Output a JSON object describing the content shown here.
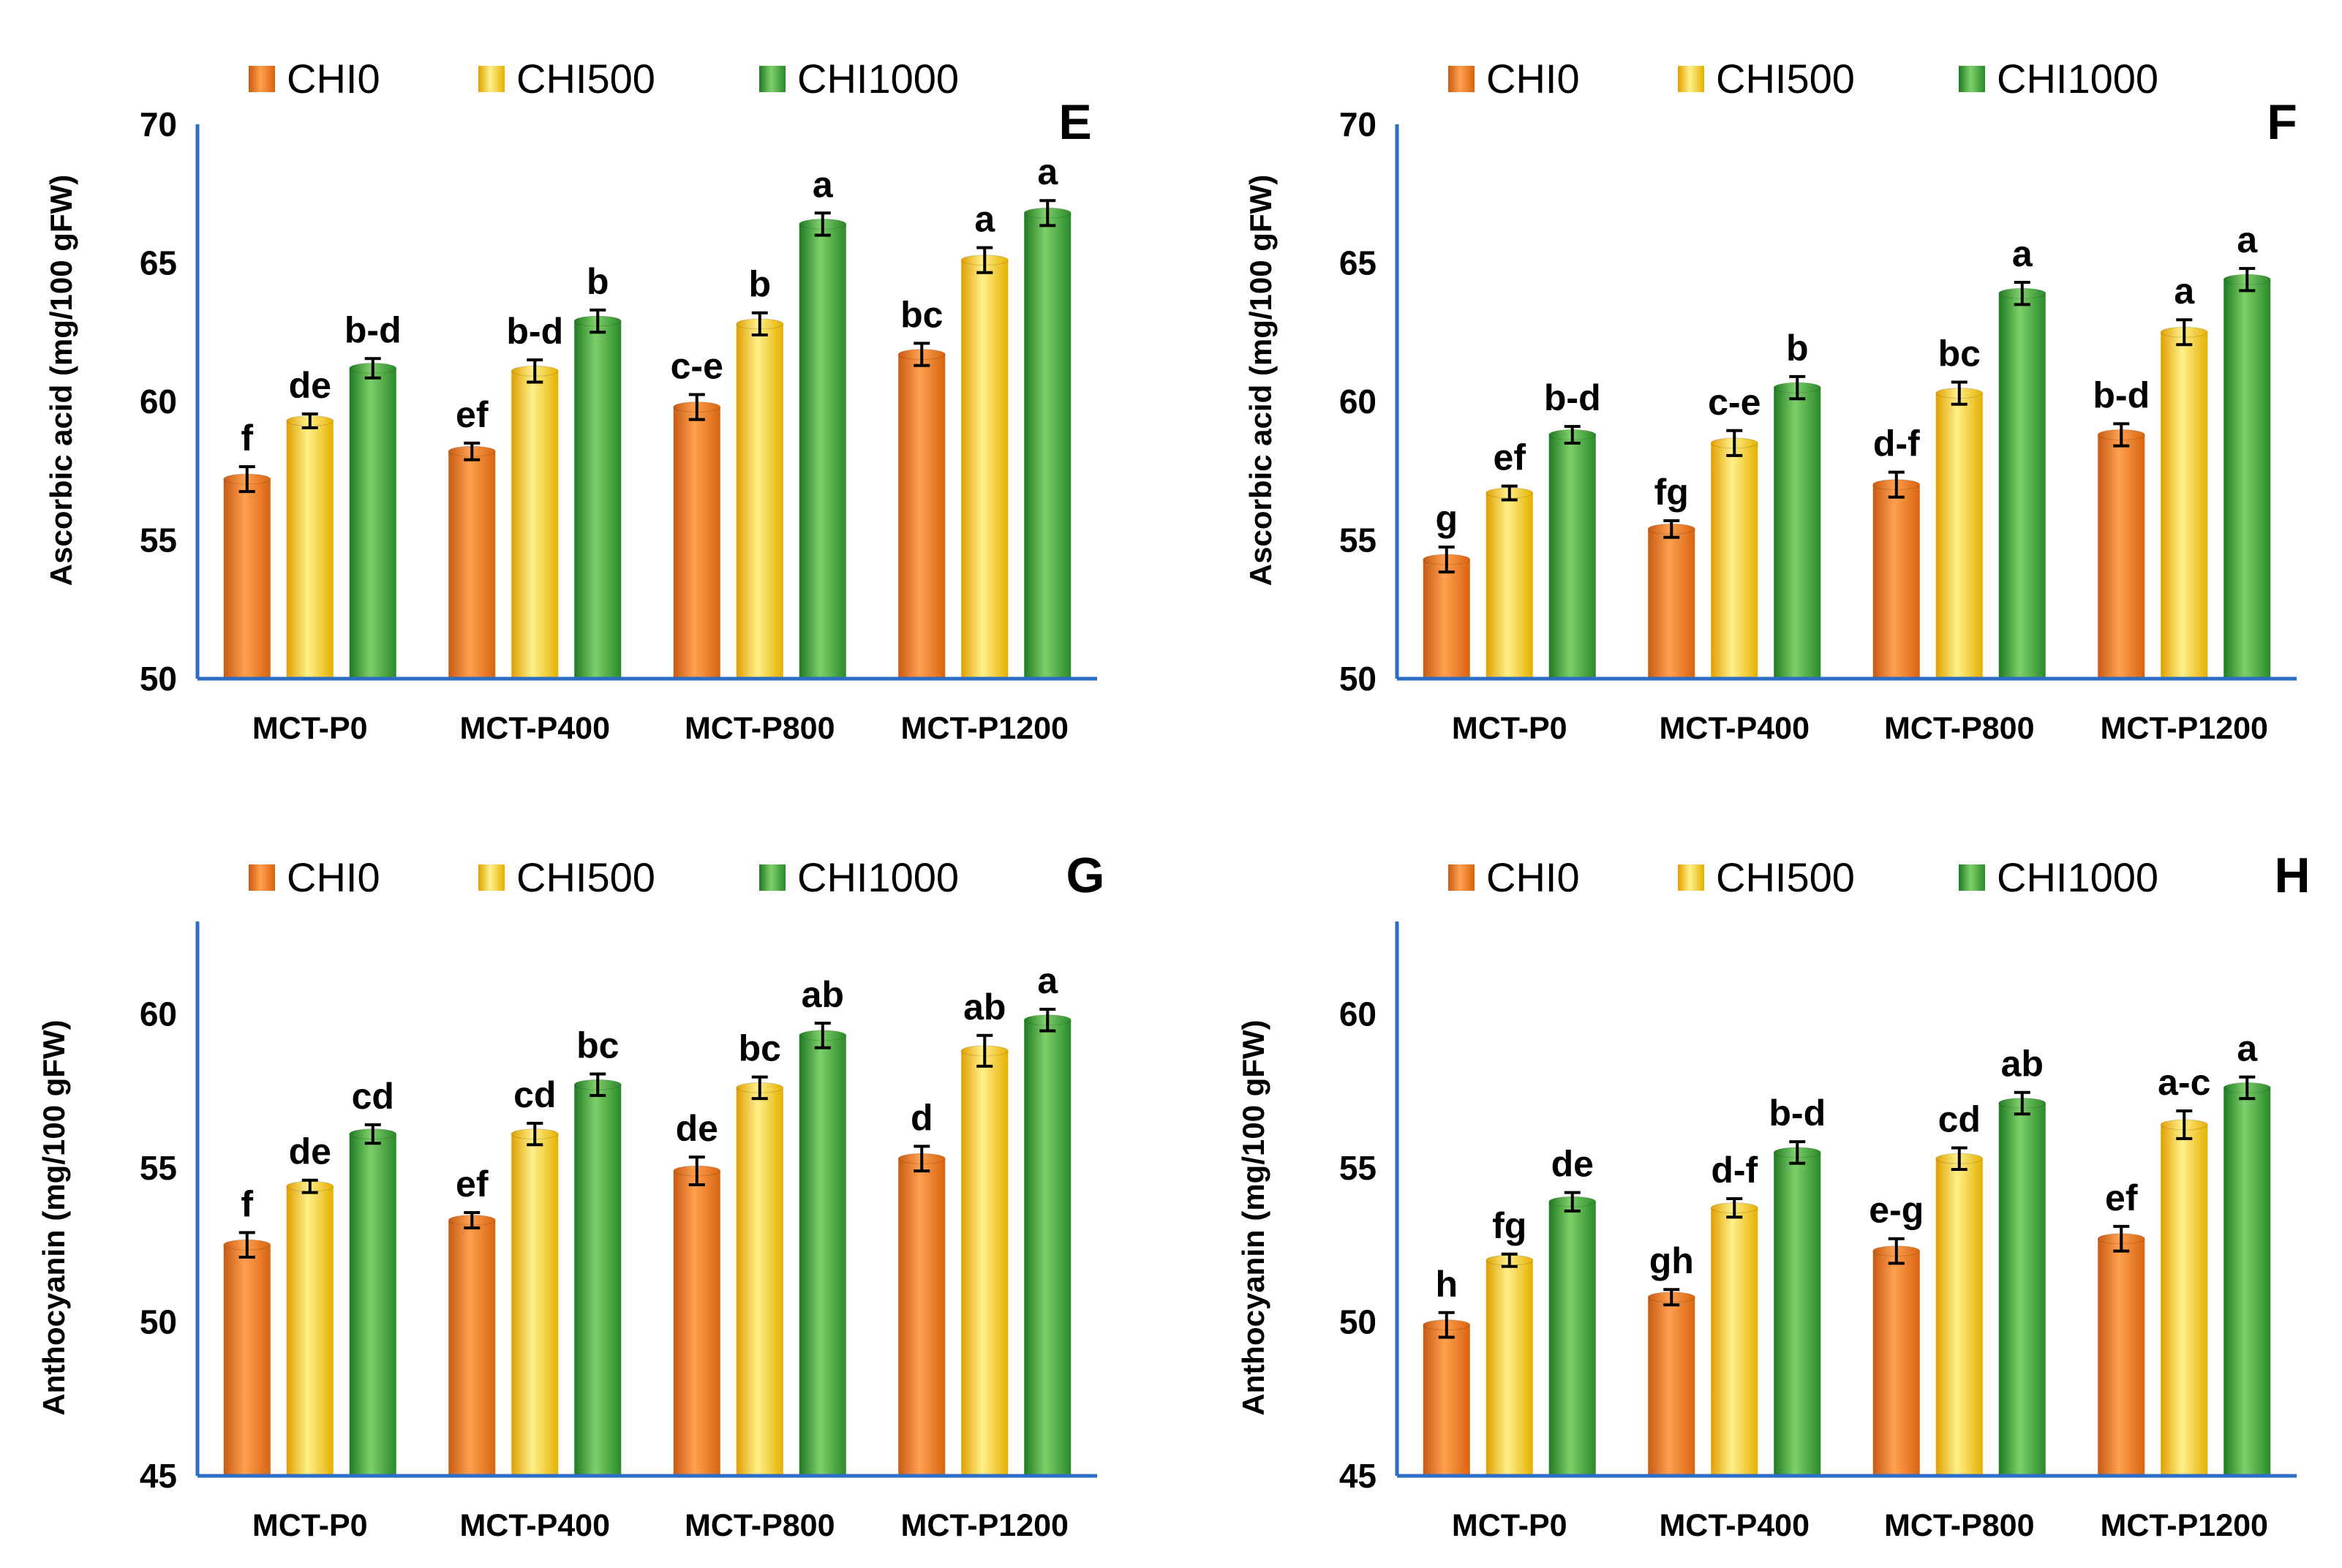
{
  "colors": {
    "CHI0": "#f07a22",
    "CHI500": "#f5c400",
    "CHI1000": "#3aa23a",
    "axis": "#2b6cc4"
  },
  "chart_data": [
    {
      "type": "bar",
      "panel": "E",
      "ylabel": "Ascorbic acid (mg/100 gFW)",
      "ylim": [
        50,
        70
      ],
      "yticks": [
        "50",
        "55",
        "60",
        "65",
        "70"
      ],
      "categories": [
        "MCT-P0",
        "MCT-P400",
        "MCT-P800",
        "MCT-P1200"
      ],
      "series": [
        {
          "name": "CHI0",
          "values": [
            57.2,
            58.2,
            59.8,
            61.7
          ],
          "errors": [
            0.45,
            0.3,
            0.45,
            0.4
          ],
          "labels": [
            "f",
            "ef",
            "c-e",
            "bc"
          ]
        },
        {
          "name": "CHI500",
          "values": [
            59.3,
            61.1,
            62.8,
            65.1
          ],
          "errors": [
            0.25,
            0.4,
            0.4,
            0.45
          ],
          "labels": [
            "de",
            "b-d",
            "b",
            "a"
          ]
        },
        {
          "name": "CHI1000",
          "values": [
            61.2,
            62.9,
            66.4,
            66.8
          ],
          "errors": [
            0.35,
            0.4,
            0.4,
            0.45
          ],
          "labels": [
            "b-d",
            "b",
            "a",
            "a"
          ]
        }
      ]
    },
    {
      "type": "bar",
      "panel": "F",
      "ylabel": "Ascorbic acid (mg/100 gFW)",
      "ylim": [
        50,
        70
      ],
      "yticks": [
        "50",
        "55",
        "60",
        "65",
        "70"
      ],
      "categories": [
        "MCT-P0",
        "MCT-P400",
        "MCT-P800",
        "MCT-P1200"
      ],
      "series": [
        {
          "name": "CHI0",
          "values": [
            54.3,
            55.4,
            57.0,
            58.8
          ],
          "errors": [
            0.45,
            0.3,
            0.45,
            0.4
          ],
          "labels": [
            "g",
            "fg",
            "d-f",
            "b-d"
          ]
        },
        {
          "name": "CHI500",
          "values": [
            56.7,
            58.5,
            60.3,
            62.5
          ],
          "errors": [
            0.25,
            0.45,
            0.4,
            0.45
          ],
          "labels": [
            "ef",
            "c-e",
            "bc",
            "a"
          ]
        },
        {
          "name": "CHI1000",
          "values": [
            58.8,
            60.5,
            63.9,
            64.4
          ],
          "errors": [
            0.3,
            0.4,
            0.4,
            0.4
          ],
          "labels": [
            "b-d",
            "b",
            "a",
            "a"
          ]
        }
      ]
    },
    {
      "type": "bar",
      "panel": "G",
      "ylabel": "Anthocyanin (mg/100 gFW)",
      "ylim": [
        45,
        63
      ],
      "yticks": [
        "45",
        "50",
        "55",
        "60"
      ],
      "categories": [
        "MCT-P0",
        "MCT-P400",
        "MCT-P800",
        "MCT-P1200"
      ],
      "series": [
        {
          "name": "CHI0",
          "values": [
            52.5,
            53.3,
            54.9,
            55.3
          ],
          "errors": [
            0.4,
            0.25,
            0.45,
            0.4
          ],
          "labels": [
            "f",
            "ef",
            "de",
            "d"
          ]
        },
        {
          "name": "CHI500",
          "values": [
            54.4,
            56.1,
            57.6,
            58.8
          ],
          "errors": [
            0.2,
            0.35,
            0.35,
            0.5
          ],
          "labels": [
            "de",
            "cd",
            "bc",
            "ab"
          ]
        },
        {
          "name": "CHI1000",
          "values": [
            56.1,
            57.7,
            59.3,
            59.8
          ],
          "errors": [
            0.3,
            0.35,
            0.4,
            0.35
          ],
          "labels": [
            "cd",
            "bc",
            "ab",
            "a"
          ]
        }
      ]
    },
    {
      "type": "bar",
      "panel": "H",
      "ylabel": "Anthocyanin (mg/100 gFW)",
      "ylim": [
        45,
        63
      ],
      "yticks": [
        "45",
        "50",
        "55",
        "60"
      ],
      "categories": [
        "MCT-P0",
        "MCT-P400",
        "MCT-P800",
        "MCT-P1200"
      ],
      "series": [
        {
          "name": "CHI0",
          "values": [
            49.9,
            50.8,
            52.3,
            52.7
          ],
          "errors": [
            0.4,
            0.25,
            0.4,
            0.4
          ],
          "labels": [
            "h",
            "gh",
            "e-g",
            "ef"
          ]
        },
        {
          "name": "CHI500",
          "values": [
            52.0,
            53.7,
            55.3,
            56.4
          ],
          "errors": [
            0.2,
            0.3,
            0.35,
            0.45
          ],
          "labels": [
            "fg",
            "d-f",
            "cd",
            "a-c"
          ]
        },
        {
          "name": "CHI1000",
          "values": [
            53.9,
            55.5,
            57.1,
            57.6
          ],
          "errors": [
            0.3,
            0.35,
            0.35,
            0.35
          ],
          "labels": [
            "de",
            "b-d",
            "ab",
            "a"
          ]
        }
      ]
    }
  ]
}
